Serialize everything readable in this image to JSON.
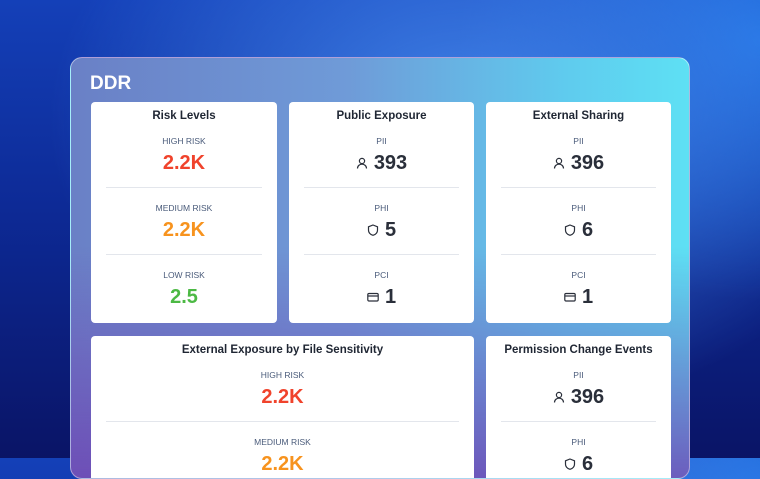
{
  "header": {
    "title": "DDR"
  },
  "cards": [
    {
      "title": "Risk Levels",
      "items": [
        {
          "label": "HIGH RISK",
          "value": "2.2K"
        },
        {
          "label": "MEDIUM RISK",
          "value": "2.2K"
        },
        {
          "label": "LOW RISK",
          "value": 2.5
        }
      ]
    },
    {
      "title": "Public Exposure",
      "items": [
        {
          "label": "PII",
          "value": 393
        },
        {
          "label": "PHI",
          "value": 5
        },
        {
          "label": "PCI",
          "value": 1
        }
      ]
    },
    {
      "title": "External Sharing",
      "items": [
        {
          "label": "PII",
          "value": 396
        },
        {
          "label": "PHI",
          "value": 6
        },
        {
          "label": "PCI",
          "value": 1
        }
      ]
    },
    {
      "title": "External Exposure by File Sensitivity",
      "items": [
        {
          "label": "HIGH RISK",
          "value": "2.2K"
        },
        {
          "label": "MEDIUM RISK",
          "value": "2.2K"
        }
      ]
    },
    {
      "title": "Permission Change Events",
      "items": [
        {
          "label": "PII",
          "value": 396
        },
        {
          "label": "PHI",
          "value": 6
        }
      ]
    }
  ]
}
